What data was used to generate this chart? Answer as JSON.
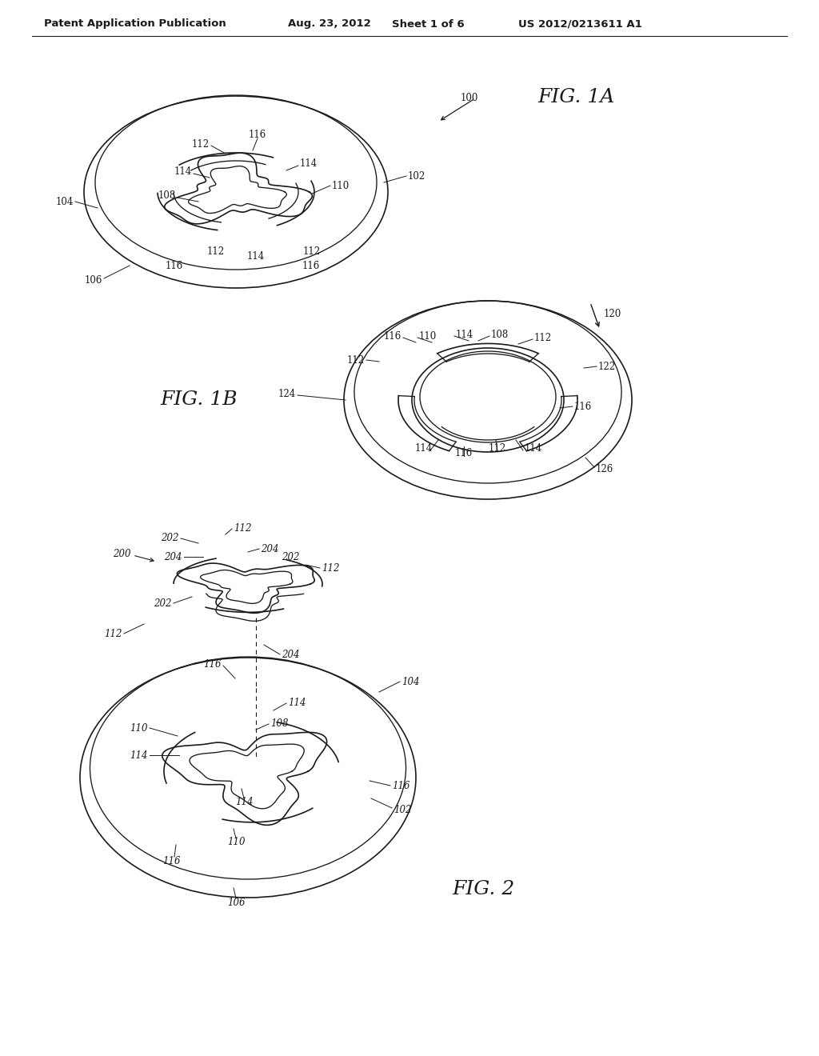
{
  "background_color": "#ffffff",
  "header_text": "Patent Application Publication",
  "header_date": "Aug. 23, 2012",
  "header_sheet": "Sheet 1 of 6",
  "header_patent": "US 2012/0213611 A1",
  "fig1a_label": "FIG. 1A",
  "fig1b_label": "FIG. 1B",
  "fig2_label": "FIG. 2",
  "line_color": "#1a1a1a",
  "text_color": "#1a1a1a",
  "font_size_label": 18,
  "font_size_ref": 8.5,
  "font_size_header": 9.5
}
